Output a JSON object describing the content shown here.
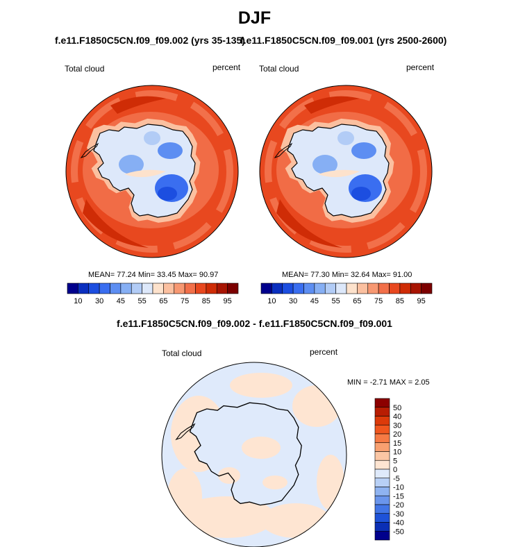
{
  "season": "DJF",
  "panels": [
    {
      "title": "f.e11.F1850C5CN.f09_f09.002 (yrs 35-135)",
      "variable": "Total cloud",
      "units": "percent",
      "stats": "MEAN=  77.24  Min=  33.45  Max=  90.97"
    },
    {
      "title": "f.e11.F1850C5CN.f09_f09.001 (yrs 2500-2600)",
      "variable": "Total cloud",
      "units": "percent",
      "stats": "MEAN=  77.30  Min=  32.64  Max=  91.00"
    }
  ],
  "difference": {
    "title": "f.e11.F1850C5CN.f09_f09.002 - f.e11.F1850C5CN.f09_f09.001",
    "variable": "Total cloud",
    "units": "percent",
    "stats": "MIN =  -2.71 MAX =   2.05"
  },
  "chart_data": [
    {
      "type": "heatmap",
      "projection": "south-polar-stereographic",
      "title": "f.e11.F1850C5CN.f09_f09.002 (yrs 35-135)",
      "variable": "Total cloud",
      "units": "percent",
      "mean": 77.24,
      "min": 33.45,
      "max": 90.97,
      "colorbar_levels": [
        10,
        20,
        30,
        40,
        45,
        50,
        55,
        60,
        65,
        70,
        75,
        80,
        85,
        90,
        95
      ],
      "colorbar_labels": [
        "10",
        "30",
        "45",
        "55",
        "65",
        "75",
        "85",
        "95"
      ]
    },
    {
      "type": "heatmap",
      "projection": "south-polar-stereographic",
      "title": "f.e11.F1850C5CN.f09_f09.001 (yrs 2500-2600)",
      "variable": "Total cloud",
      "units": "percent",
      "mean": 77.3,
      "min": 32.64,
      "max": 91.0,
      "colorbar_levels": [
        10,
        20,
        30,
        40,
        45,
        50,
        55,
        60,
        65,
        70,
        75,
        80,
        85,
        90,
        95
      ],
      "colorbar_labels": [
        "10",
        "30",
        "45",
        "55",
        "65",
        "75",
        "85",
        "95"
      ]
    },
    {
      "type": "heatmap",
      "projection": "south-polar-stereographic",
      "title": "f.e11.F1850C5CN.f09_f09.002 - f.e11.F1850C5CN.f09_f09.001",
      "variable": "Total cloud",
      "units": "percent",
      "min": -2.71,
      "max": 2.05,
      "colorbar_levels": [
        50,
        40,
        30,
        20,
        15,
        10,
        5,
        0,
        -5,
        -10,
        -15,
        -20,
        -30,
        -40,
        -50
      ],
      "colorbar_labels": [
        "50",
        "40",
        "30",
        "20",
        "15",
        "10",
        "5",
        "0",
        "-5",
        "-10",
        "-15",
        "-20",
        "-30",
        "-40",
        "-50"
      ]
    }
  ],
  "colors": {
    "abs_scale": [
      "#00008c",
      "#0a2fbf",
      "#1c4ee0",
      "#3a6ef0",
      "#5d8ef2",
      "#86aff4",
      "#b2ccf6",
      "#dde8fa",
      "#fde2cc",
      "#fbc0a0",
      "#f79872",
      "#f2704a",
      "#e8481f",
      "#cf2c06",
      "#a81503",
      "#7c0000"
    ],
    "diff_scale": [
      "#8c0000",
      "#b81d03",
      "#dc3a0a",
      "#f0561e",
      "#f67a44",
      "#f8a070",
      "#fbc6a4",
      "#fee5d2",
      "#dfeafb",
      "#b8d0f6",
      "#8fb3f1",
      "#6a95ec",
      "#4275e6",
      "#1e52d8",
      "#0b2fb5",
      "#00008c"
    ]
  }
}
